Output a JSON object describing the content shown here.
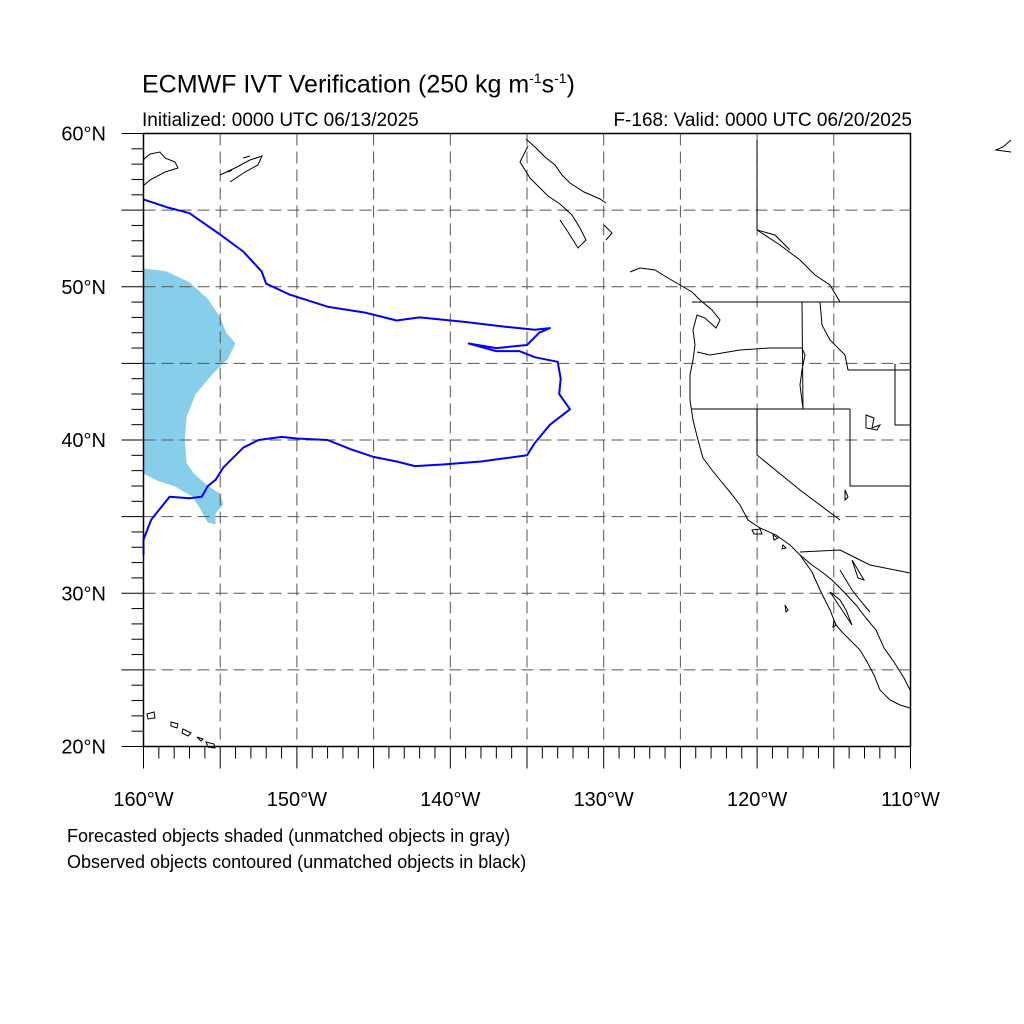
{
  "title": {
    "prefix": "ECMWF IVT Verification (250 kg m",
    "exp1": "-1",
    "mid": "s",
    "exp2": "-1",
    "suffix": ")"
  },
  "subtitle_left": "Initialized: 0000 UTC 06/13/2025",
  "subtitle_right": "F-168: Valid: 0000 UTC 06/20/2025",
  "notes": [
    "Forecasted objects shaded (unmatched objects in gray)",
    "Observed objects contoured (unmatched objects in black)"
  ],
  "map": {
    "lon_range": [
      -160,
      -110
    ],
    "lat_range": [
      20,
      60
    ],
    "lat_labels": [
      "20°N",
      "30°N",
      "40°N",
      "50°N",
      "60°N"
    ],
    "lon_labels": [
      "160°W",
      "150°W",
      "140°W",
      "130°W",
      "120°W",
      "110°W"
    ],
    "forecast_fill_color": "#87ceeb",
    "observed_contour_color": "#0000ff",
    "coast_color": "#000000",
    "gridlines": "dashed",
    "forecast_object": [
      [
        -160,
        51.2
      ],
      [
        -158.5,
        51.0
      ],
      [
        -157,
        50.3
      ],
      [
        -155.8,
        49.2
      ],
      [
        -155.0,
        48.0
      ],
      [
        -154.6,
        47.0
      ],
      [
        -154.0,
        46.3
      ],
      [
        -154.5,
        45.3
      ],
      [
        -155.5,
        44.3
      ],
      [
        -156.6,
        43.0
      ],
      [
        -157.2,
        41.5
      ],
      [
        -157.3,
        40.0
      ],
      [
        -157.2,
        38.5
      ],
      [
        -156.7,
        37.8
      ],
      [
        -155.8,
        37.0
      ],
      [
        -155.0,
        36.5
      ],
      [
        -154.8,
        35.8
      ],
      [
        -155.3,
        35.2
      ],
      [
        -155.3,
        34.5
      ],
      [
        -155.8,
        34.6
      ],
      [
        -156.3,
        35.5
      ],
      [
        -156.8,
        36.3
      ],
      [
        -158.0,
        37.0
      ],
      [
        -159.0,
        37.3
      ],
      [
        -160,
        37.8
      ]
    ],
    "observed_object": [
      [
        -160,
        55.7
      ],
      [
        -158.5,
        55.2
      ],
      [
        -157,
        54.8
      ],
      [
        -155,
        53.4
      ],
      [
        -153.5,
        52.3
      ],
      [
        -152.3,
        51.0
      ],
      [
        -152.0,
        50.2
      ],
      [
        -150.5,
        49.5
      ],
      [
        -148,
        48.7
      ],
      [
        -145.5,
        48.3
      ],
      [
        -143.5,
        47.8
      ],
      [
        -142,
        48.0
      ],
      [
        -139,
        47.7
      ],
      [
        -136.5,
        47.4
      ],
      [
        -134.5,
        47.2
      ],
      [
        -133.5,
        47.3
      ],
      [
        -134.2,
        47.0
      ],
      [
        -135,
        46.2
      ],
      [
        -137.0,
        46.0
      ],
      [
        -138.8,
        46.3
      ],
      [
        -137.0,
        45.8
      ],
      [
        -135.5,
        45.8
      ],
      [
        -134.5,
        45.4
      ],
      [
        -133.0,
        45.1
      ],
      [
        -132.8,
        44.0
      ],
      [
        -132.9,
        43.0
      ],
      [
        -132.2,
        42.0
      ],
      [
        -133.5,
        41.0
      ],
      [
        -134.5,
        39.8
      ],
      [
        -135,
        39.0
      ],
      [
        -136.5,
        38.8
      ],
      [
        -138,
        38.6
      ],
      [
        -140.5,
        38.4
      ],
      [
        -142.3,
        38.3
      ],
      [
        -143.5,
        38.6
      ],
      [
        -145.0,
        38.9
      ],
      [
        -146.5,
        39.4
      ],
      [
        -148.0,
        40.0
      ],
      [
        -150,
        40.1
      ],
      [
        -151.0,
        40.2
      ],
      [
        -152.5,
        40.0
      ],
      [
        -153.5,
        39.5
      ],
      [
        -154.8,
        38.2
      ],
      [
        -155.3,
        37.4
      ],
      [
        -155.8,
        37.0
      ],
      [
        -156.2,
        36.3
      ],
      [
        -157.0,
        36.2
      ],
      [
        -158.3,
        36.3
      ],
      [
        -159.5,
        34.8
      ],
      [
        -160,
        33.5
      ],
      [
        -160,
        32.5
      ]
    ]
  }
}
